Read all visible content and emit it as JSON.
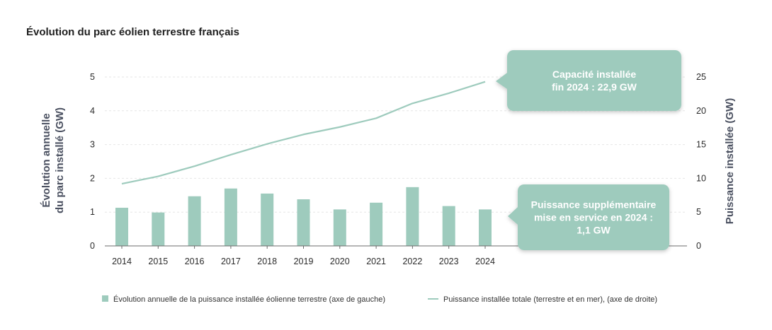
{
  "chart_data": {
    "type": "bar+line",
    "title": "Évolution du parc éolien terrestre français",
    "categories": [
      "2014",
      "2015",
      "2016",
      "2017",
      "2018",
      "2019",
      "2020",
      "2021",
      "2022",
      "2023",
      "2024"
    ],
    "y_left": {
      "label_lines": [
        "Évolution annuelle",
        "du parc installé (GW)"
      ],
      "ticks": [
        "0",
        "1",
        "2",
        "3",
        "4",
        "5"
      ],
      "range": [
        0,
        5
      ]
    },
    "y_right": {
      "label": "Puissance installée (GW)",
      "ticks": [
        "0",
        "5",
        "10",
        "15",
        "20",
        "25"
      ],
      "range": [
        0,
        25
      ]
    },
    "grid": true,
    "series": [
      {
        "name": "Évolution annuelle de la puissance installée éolienne terrestre (axe de gauche)",
        "type": "bar",
        "axis": "left",
        "values": [
          1.13,
          0.99,
          1.47,
          1.7,
          1.55,
          1.38,
          1.08,
          1.28,
          1.74,
          1.18,
          1.08
        ]
      },
      {
        "name": "Puissance installée totale (terrestre et en mer), (axe de droite)",
        "type": "line",
        "axis": "right",
        "values": [
          9.2,
          10.3,
          11.8,
          13.5,
          15.1,
          16.5,
          17.6,
          18.9,
          21.1,
          22.6,
          24.3
        ]
      }
    ],
    "annotations": [
      {
        "lines": [
          "Capacité installée",
          "fin 2024 : 22,9 GW"
        ]
      },
      {
        "lines": [
          "Puissance supplémentaire",
          "mise en service en 2024 :",
          "1,1 GW"
        ]
      }
    ],
    "colors": {
      "bar": "#9ecbbd",
      "line": "#9ecbbd",
      "callout": "#9ecbbd"
    }
  }
}
